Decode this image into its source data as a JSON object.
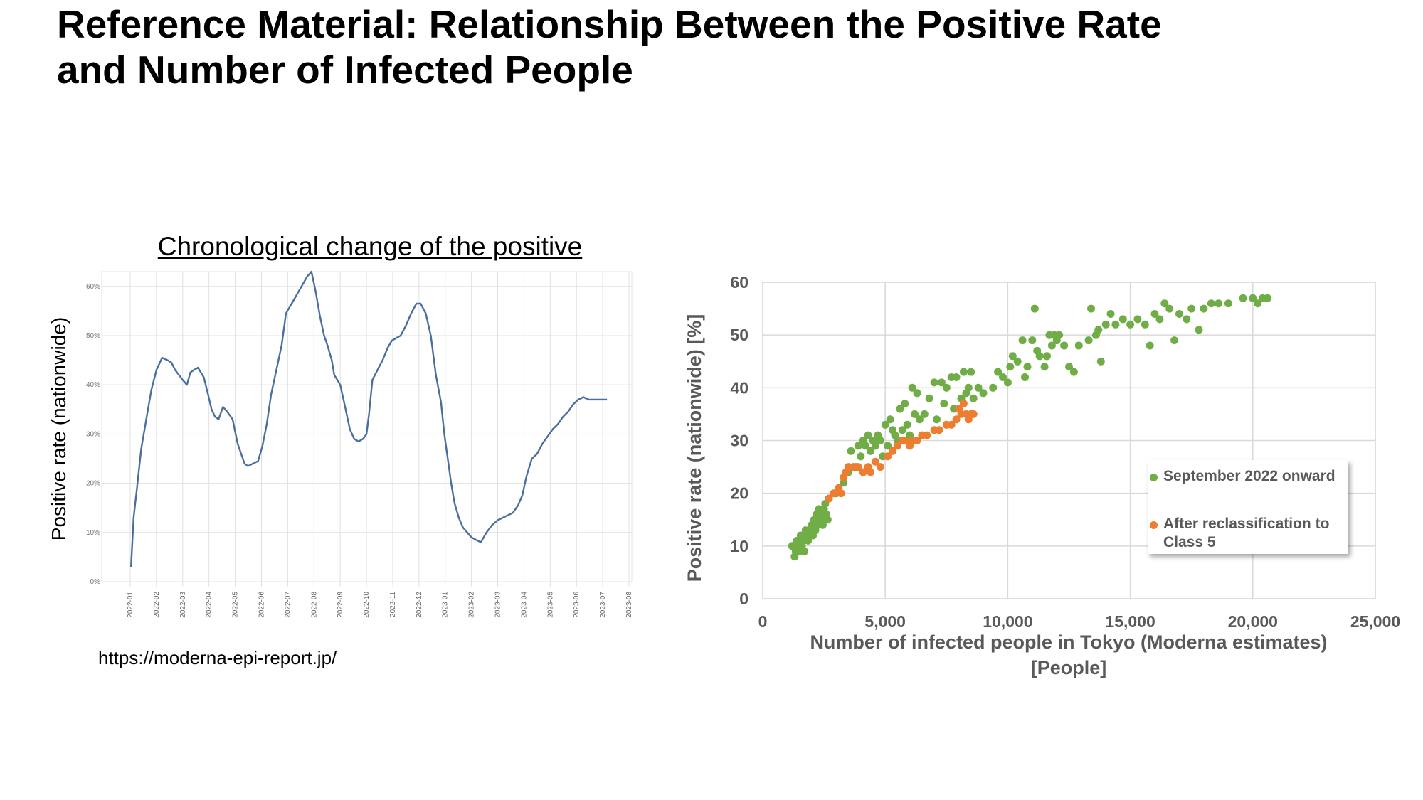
{
  "slide": {
    "title_line1": "Reference Material: Relationship Between the Positive Rate",
    "title_line2": "and Number of Infected People",
    "source_url": "https://moderna-epi-report.jp/"
  },
  "colors": {
    "line": "#4a6f9e",
    "green": "#70ad47",
    "orange": "#ed7d31",
    "grid": "#d9d9d9",
    "axis_text": "#595959"
  },
  "chart_data": [
    {
      "type": "line",
      "title": "Chronological change of the positive",
      "ylabel": "Positive rate (nationwide)",
      "xlabel": "",
      "ylim": [
        0,
        0.63
      ],
      "y_ticks": [
        0,
        0.1,
        0.2,
        0.3,
        0.4,
        0.5,
        0.6
      ],
      "y_tick_labels": [
        "0%",
        "10%",
        "20%",
        "30%",
        "40%",
        "50%",
        "60%"
      ],
      "x_tick_labels": [
        "2022-01",
        "2022-02",
        "2022-03",
        "2022-04",
        "2022-05",
        "2022-06",
        "2022-07",
        "2022-08",
        "2022-09",
        "2022-10",
        "2022-11",
        "2022-12",
        "2023-01",
        "2023-02",
        "2023-03",
        "2023-04",
        "2023-05",
        "2023-06",
        "2023-07",
        "2023-08"
      ],
      "grid": true,
      "series": [
        {
          "x": [
            "2022-01-02",
            "2022-01-05",
            "2022-01-09",
            "2022-01-14",
            "2022-01-20",
            "2022-01-26",
            "2022-02-01",
            "2022-02-07",
            "2022-02-13",
            "2022-02-17",
            "2022-02-21",
            "2022-03-01",
            "2022-03-06",
            "2022-03-10",
            "2022-03-14",
            "2022-03-19",
            "2022-03-26",
            "2022-03-31",
            "2022-04-04",
            "2022-04-08",
            "2022-04-12",
            "2022-04-17",
            "2022-04-22",
            "2022-04-28",
            "2022-05-04",
            "2022-05-08",
            "2022-05-12",
            "2022-05-16",
            "2022-05-22",
            "2022-05-28",
            "2022-06-02",
            "2022-06-07",
            "2022-06-12",
            "2022-06-18",
            "2022-06-24",
            "2022-06-29",
            "2022-07-04",
            "2022-07-09",
            "2022-07-14",
            "2022-07-19",
            "2022-07-24",
            "2022-07-29",
            "2022-08-03",
            "2022-08-08",
            "2022-08-13",
            "2022-08-17",
            "2022-08-22",
            "2022-08-25",
            "2022-09-01",
            "2022-09-06",
            "2022-09-12",
            "2022-09-17",
            "2022-09-22",
            "2022-09-27",
            "2022-10-01",
            "2022-10-04",
            "2022-10-08",
            "2022-10-14",
            "2022-10-20",
            "2022-10-26",
            "2022-10-31",
            "2022-11-05",
            "2022-11-10",
            "2022-11-16",
            "2022-11-22",
            "2022-11-28",
            "2022-12-03",
            "2022-12-09",
            "2022-12-15",
            "2022-12-21",
            "2022-12-27",
            "2022-12-31",
            "2023-01-04",
            "2023-01-08",
            "2023-01-12",
            "2023-01-17",
            "2023-01-22",
            "2023-01-27",
            "2023-02-01",
            "2023-02-06",
            "2023-02-11",
            "2023-02-17",
            "2023-02-23",
            "2023-03-01",
            "2023-03-07",
            "2023-03-13",
            "2023-03-19",
            "2023-03-25",
            "2023-03-30",
            "2023-04-04",
            "2023-04-10",
            "2023-04-16",
            "2023-04-22",
            "2023-04-28",
            "2023-05-04",
            "2023-05-10",
            "2023-05-16",
            "2023-05-22",
            "2023-05-28",
            "2023-06-03",
            "2023-06-09",
            "2023-06-15",
            "2023-06-21",
            "2023-06-27",
            "2023-07-02",
            "2023-07-06"
          ],
          "values": [
            0.03,
            0.13,
            0.19,
            0.27,
            0.33,
            0.39,
            0.43,
            0.455,
            0.45,
            0.445,
            0.43,
            0.41,
            0.4,
            0.425,
            0.43,
            0.435,
            0.415,
            0.38,
            0.35,
            0.335,
            0.33,
            0.355,
            0.345,
            0.33,
            0.28,
            0.26,
            0.24,
            0.235,
            0.24,
            0.245,
            0.275,
            0.32,
            0.38,
            0.43,
            0.48,
            0.545,
            0.56,
            0.575,
            0.59,
            0.605,
            0.62,
            0.63,
            0.59,
            0.54,
            0.5,
            0.48,
            0.45,
            0.42,
            0.4,
            0.36,
            0.31,
            0.29,
            0.285,
            0.29,
            0.3,
            0.34,
            0.41,
            0.43,
            0.45,
            0.475,
            0.49,
            0.495,
            0.5,
            0.52,
            0.545,
            0.565,
            0.565,
            0.545,
            0.5,
            0.42,
            0.365,
            0.3,
            0.25,
            0.2,
            0.16,
            0.13,
            0.11,
            0.1,
            0.09,
            0.085,
            0.08,
            0.1,
            0.115,
            0.125,
            0.13,
            0.135,
            0.14,
            0.155,
            0.175,
            0.215,
            0.25,
            0.26,
            0.28,
            0.295,
            0.31,
            0.32,
            0.335,
            0.345,
            0.36,
            0.37,
            0.375,
            0.37,
            0.37,
            0.37,
            0.37,
            0.37
          ]
        }
      ]
    },
    {
      "type": "scatter",
      "title": "",
      "xlabel": "Number of infected people in Tokyo (Moderna estimates) [People]",
      "ylabel": "Positive rate (nationwide) [%]",
      "xlim": [
        0,
        25000
      ],
      "ylim": [
        0,
        60
      ],
      "x_ticks": [
        0,
        5000,
        10000,
        15000,
        20000,
        25000
      ],
      "x_tick_labels": [
        "0",
        "5,000",
        "10,000",
        "15,000",
        "20,000",
        "25,000"
      ],
      "y_ticks": [
        0,
        10,
        20,
        30,
        40,
        50,
        60
      ],
      "y_tick_labels": [
        "0",
        "10",
        "20",
        "30",
        "40",
        "50",
        "60"
      ],
      "grid": true,
      "legend_position": "lower-right",
      "series": [
        {
          "name": "September 2022 onward",
          "points": [
            [
              1200,
              10
            ],
            [
              1300,
              8
            ],
            [
              1350,
              9
            ],
            [
              1400,
              11
            ],
            [
              1450,
              10
            ],
            [
              1500,
              9
            ],
            [
              1550,
              12
            ],
            [
              1600,
              10
            ],
            [
              1650,
              11
            ],
            [
              1700,
              9
            ],
            [
              1750,
              13
            ],
            [
              1800,
              12
            ],
            [
              1850,
              11
            ],
            [
              1900,
              12
            ],
            [
              1950,
              13
            ],
            [
              2000,
              14
            ],
            [
              2050,
              12
            ],
            [
              2100,
              15
            ],
            [
              2150,
              13
            ],
            [
              2200,
              16
            ],
            [
              2250,
              14
            ],
            [
              2300,
              17
            ],
            [
              2350,
              15
            ],
            [
              2400,
              16
            ],
            [
              2450,
              14
            ],
            [
              2500,
              17
            ],
            [
              2550,
              18
            ],
            [
              2600,
              16
            ],
            [
              2650,
              15
            ],
            [
              2700,
              19
            ],
            [
              3000,
              20
            ],
            [
              3300,
              22
            ],
            [
              3500,
              24
            ],
            [
              3600,
              28
            ],
            [
              3800,
              25
            ],
            [
              3900,
              29
            ],
            [
              4000,
              27
            ],
            [
              4100,
              30
            ],
            [
              4200,
              29
            ],
            [
              4300,
              31
            ],
            [
              4400,
              28
            ],
            [
              4500,
              30
            ],
            [
              4600,
              29
            ],
            [
              4700,
              31
            ],
            [
              4800,
              30
            ],
            [
              4900,
              27
            ],
            [
              5000,
              33
            ],
            [
              5100,
              29
            ],
            [
              5200,
              34
            ],
            [
              5300,
              32
            ],
            [
              5400,
              31
            ],
            [
              5500,
              30
            ],
            [
              5600,
              36
            ],
            [
              5700,
              32
            ],
            [
              5800,
              37
            ],
            [
              5900,
              33
            ],
            [
              6000,
              31
            ],
            [
              6100,
              40
            ],
            [
              6200,
              35
            ],
            [
              6300,
              39
            ],
            [
              6400,
              34
            ],
            [
              6600,
              35
            ],
            [
              6800,
              38
            ],
            [
              7000,
              41
            ],
            [
              7100,
              34
            ],
            [
              7300,
              41
            ],
            [
              7400,
              37
            ],
            [
              7500,
              40
            ],
            [
              7700,
              42
            ],
            [
              7800,
              36
            ],
            [
              7900,
              42
            ],
            [
              8100,
              38
            ],
            [
              8200,
              43
            ],
            [
              8300,
              39
            ],
            [
              8400,
              40
            ],
            [
              8500,
              43
            ],
            [
              8600,
              38
            ],
            [
              8800,
              40
            ],
            [
              9000,
              39
            ],
            [
              9400,
              40
            ],
            [
              9600,
              43
            ],
            [
              9800,
              42
            ],
            [
              10000,
              41
            ],
            [
              10100,
              44
            ],
            [
              10200,
              46
            ],
            [
              10400,
              45
            ],
            [
              10600,
              49
            ],
            [
              10700,
              42
            ],
            [
              10800,
              44
            ],
            [
              11000,
              49
            ],
            [
              11100,
              55
            ],
            [
              11200,
              47
            ],
            [
              11300,
              46
            ],
            [
              11500,
              44
            ],
            [
              11600,
              46
            ],
            [
              11700,
              50
            ],
            [
              11800,
              48
            ],
            [
              11900,
              50
            ],
            [
              12000,
              49
            ],
            [
              12100,
              50
            ],
            [
              12300,
              48
            ],
            [
              12500,
              44
            ],
            [
              12700,
              43
            ],
            [
              12900,
              48
            ],
            [
              13300,
              49
            ],
            [
              13400,
              55
            ],
            [
              13600,
              50
            ],
            [
              13700,
              51
            ],
            [
              13800,
              45
            ],
            [
              14000,
              52
            ],
            [
              14200,
              54
            ],
            [
              14400,
              52
            ],
            [
              14700,
              53
            ],
            [
              15000,
              52
            ],
            [
              15300,
              53
            ],
            [
              15600,
              52
            ],
            [
              15800,
              48
            ],
            [
              16000,
              54
            ],
            [
              16200,
              53
            ],
            [
              16400,
              56
            ],
            [
              16600,
              55
            ],
            [
              16800,
              49
            ],
            [
              17000,
              54
            ],
            [
              17300,
              53
            ],
            [
              17500,
              55
            ],
            [
              17800,
              51
            ],
            [
              18000,
              55
            ],
            [
              18300,
              56
            ],
            [
              18600,
              56
            ],
            [
              19000,
              56
            ],
            [
              19600,
              57
            ],
            [
              20000,
              57
            ],
            [
              20200,
              56
            ],
            [
              20400,
              57
            ],
            [
              20600,
              57
            ]
          ]
        },
        {
          "name": "After reclassification to Class 5",
          "points": [
            [
              2700,
              19
            ],
            [
              2900,
              20
            ],
            [
              3100,
              21
            ],
            [
              3200,
              20
            ],
            [
              3300,
              23
            ],
            [
              3400,
              24
            ],
            [
              3500,
              25
            ],
            [
              3700,
              25
            ],
            [
              3900,
              25
            ],
            [
              4100,
              24
            ],
            [
              4300,
              25
            ],
            [
              4400,
              24
            ],
            [
              4600,
              26
            ],
            [
              4800,
              25
            ],
            [
              5100,
              27
            ],
            [
              5300,
              28
            ],
            [
              5500,
              29
            ],
            [
              5700,
              30
            ],
            [
              5800,
              30
            ],
            [
              6000,
              29
            ],
            [
              6100,
              30
            ],
            [
              6300,
              30
            ],
            [
              6500,
              31
            ],
            [
              6700,
              31
            ],
            [
              7000,
              32
            ],
            [
              7200,
              32
            ],
            [
              7500,
              33
            ],
            [
              7700,
              33
            ],
            [
              7900,
              34
            ],
            [
              8000,
              36
            ],
            [
              8100,
              35
            ],
            [
              8200,
              37
            ],
            [
              8300,
              35
            ],
            [
              8400,
              34
            ],
            [
              8500,
              35
            ],
            [
              8600,
              35
            ]
          ]
        }
      ]
    }
  ]
}
